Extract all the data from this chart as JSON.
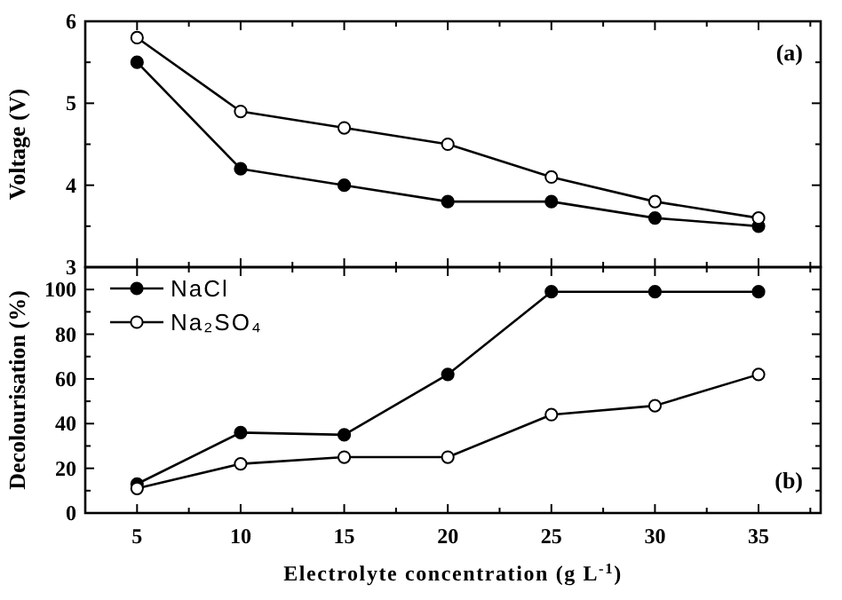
{
  "chart_data": [
    {
      "type": "line",
      "ylabel": "Voltage (V)",
      "x": [
        5,
        10,
        15,
        20,
        25,
        30,
        35
      ],
      "xlim": [
        2.5,
        38
      ],
      "xticks": [
        5,
        {
          "value": 7.5,
          "label": null
        },
        10,
        {
          "value": 12.5,
          "label": null
        },
        15,
        {
          "value": 17.5,
          "label": null
        },
        20,
        {
          "value": 22.5,
          "label": null
        },
        25,
        {
          "value": 27.5,
          "label": null
        },
        30,
        {
          "value": 32.5,
          "label": null
        },
        35,
        {
          "value": 37.5,
          "label": null
        }
      ],
      "ylim": [
        3,
        6
      ],
      "yticks": [
        3,
        {
          "value": 3.5,
          "label": null
        },
        4,
        {
          "value": 4.5,
          "label": null
        },
        5,
        {
          "value": 5.5,
          "label": null
        },
        6
      ],
      "tick_labels": "y",
      "marker": "circle",
      "line_style": "solid",
      "annotations": [
        "(a)"
      ],
      "series": [
        {
          "color": "#000000",
          "values": [
            5.5,
            4.2,
            4.0,
            3.8,
            3.8,
            3.6,
            3.5
          ]
        },
        {
          "color": "#000000",
          "values": [
            5.8,
            4.9,
            4.7,
            4.5,
            4.1,
            3.8,
            3.6
          ]
        }
      ]
    },
    {
      "type": "line",
      "ylabel": "Decolourisation (%)",
      "xlabel": "Electrolyte concentration (g L$^{-1}$)",
      "x": [
        5,
        10,
        15,
        20,
        25,
        30,
        35
      ],
      "xlim": [
        2.5,
        38
      ],
      "xticks": [
        5,
        {
          "value": 7.5,
          "label": null
        },
        10,
        {
          "value": 12.5,
          "label": null
        },
        15,
        {
          "value": 17.5,
          "label": null
        },
        20,
        {
          "value": 22.5,
          "label": null
        },
        25,
        {
          "value": 27.5,
          "label": null
        },
        30,
        {
          "value": 32.5,
          "label": null
        },
        35,
        {
          "value": 37.5,
          "label": null
        }
      ],
      "ylim": [
        0,
        110
      ],
      "yticks": [
        0,
        {
          "value": 10,
          "label": null
        },
        20,
        {
          "value": 30,
          "label": null
        },
        40,
        {
          "value": 50,
          "label": null
        },
        60,
        {
          "value": 70,
          "label": null
        },
        80,
        {
          "value": 90,
          "label": null
        },
        100
      ],
      "legend": "top left",
      "marker": "circle",
      "line_style": "solid",
      "annotations": [
        "(b)"
      ],
      "series": [
        {
          "name": "NaCl",
          "color": "#000000",
          "values": [
            13,
            36,
            35,
            62,
            99,
            99,
            99
          ]
        },
        {
          "name": "Na₂SO₄",
          "color": "#000000",
          "values": [
            11,
            22,
            25,
            25,
            44,
            48,
            62
          ]
        }
      ]
    }
  ]
}
